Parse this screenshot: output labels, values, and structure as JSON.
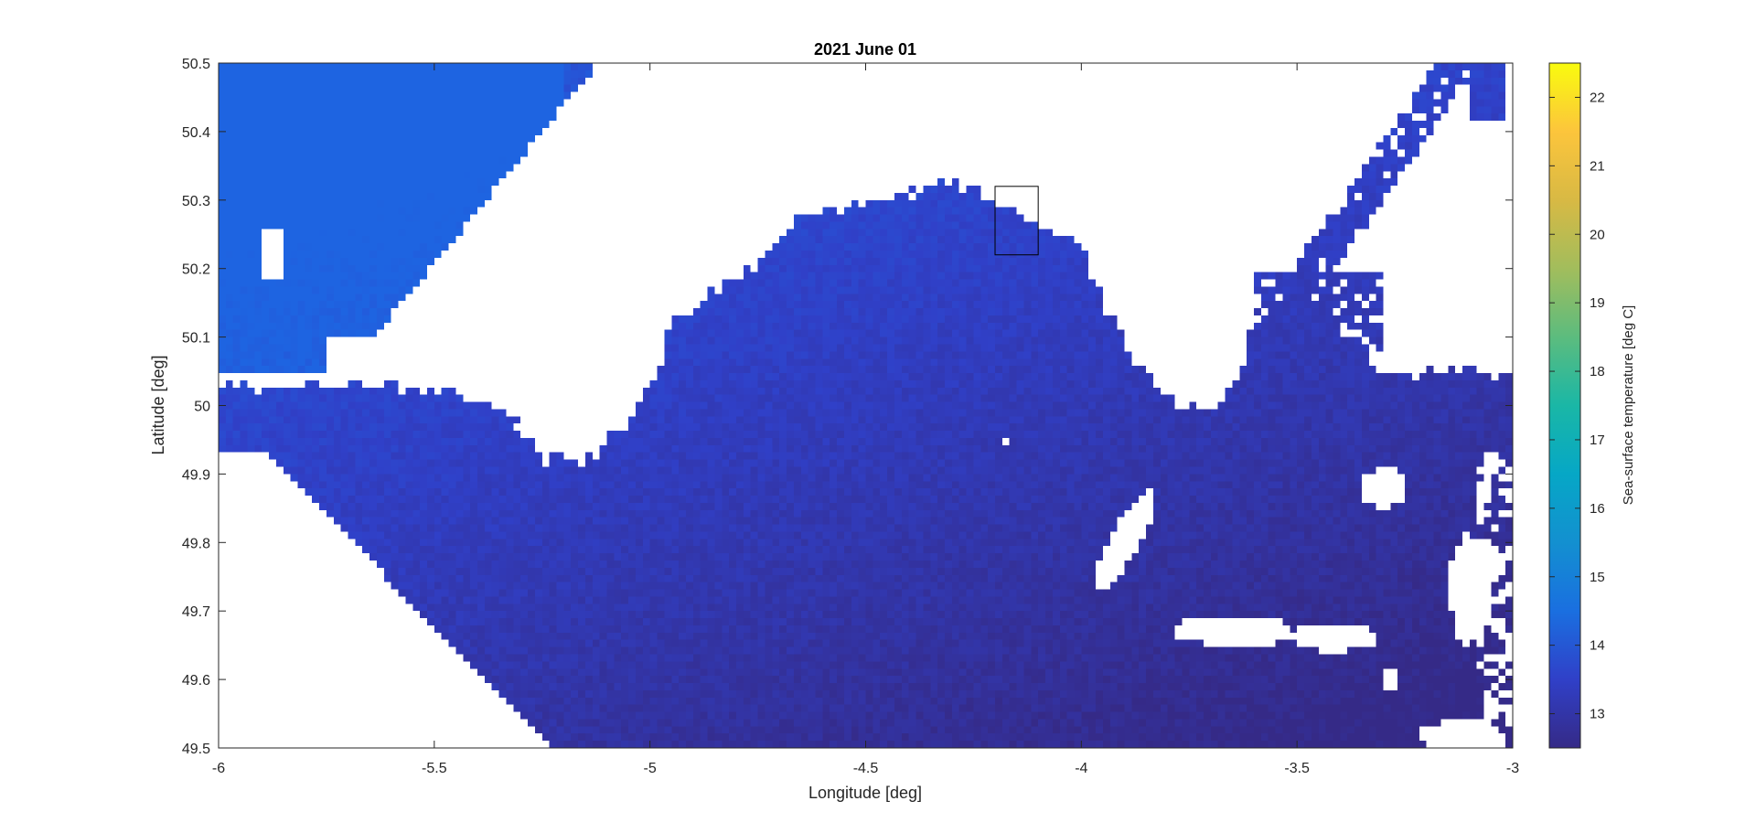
{
  "chart_data": {
    "type": "heatmap",
    "title": "2021 June 01",
    "xlabel": "Longitude [deg]",
    "ylabel": "Latitude [deg]",
    "xlim": [
      -6,
      -3
    ],
    "ylim": [
      49.5,
      50.5
    ],
    "x_ticks": [
      -6,
      -5.5,
      -5,
      -4.5,
      -4,
      -3.5,
      -3
    ],
    "y_ticks": [
      49.5,
      49.6,
      49.7,
      49.8,
      49.9,
      50,
      50.1,
      50.2,
      50.3,
      50.4,
      50.5
    ],
    "x_tick_labels": [
      "-6",
      "-5.5",
      "-5",
      "-4.5",
      "-4",
      "-3.5",
      "-3"
    ],
    "y_tick_labels": [
      "49.5",
      "49.6",
      "49.7",
      "49.8",
      "49.9",
      "50",
      "50.1",
      "50.2",
      "50.3",
      "50.4",
      "50.5"
    ],
    "colorbar": {
      "label": "Sea-surface temperature [deg C]",
      "clim": [
        12.5,
        22.5
      ],
      "ticks": [
        13,
        14,
        15,
        16,
        17,
        18,
        19,
        20,
        21,
        22
      ],
      "tick_labels": [
        "13",
        "14",
        "15",
        "16",
        "17",
        "18",
        "19",
        "20",
        "21",
        "22"
      ],
      "colormap": "parula"
    },
    "field_summary": {
      "sst_range_shown_deg_c": [
        12.7,
        13.9
      ],
      "warmest_region": "north-west corner (~13.5-13.9)",
      "coolest_region": "east and central (~12.8-13.0)",
      "missing_data": "land and cloud masked (white)"
    },
    "highlight_box": {
      "lon": [
        -4.2,
        -4.1
      ],
      "lat": [
        50.22,
        50.32
      ]
    },
    "masked_regions": [
      {
        "name": "north coast (Devon/Cornwall)",
        "lat_above": 50.05
      },
      {
        "name": "cornwall peninsula",
        "west_of_lon": -5.7
      },
      {
        "name": "cloud east",
        "lon": [
          -3.95,
          -3.25
        ],
        "lat": [
          49.63,
          49.92
        ]
      }
    ],
    "grid": false
  },
  "colors": {
    "masked": "#ffffff",
    "frame": "#262626"
  }
}
